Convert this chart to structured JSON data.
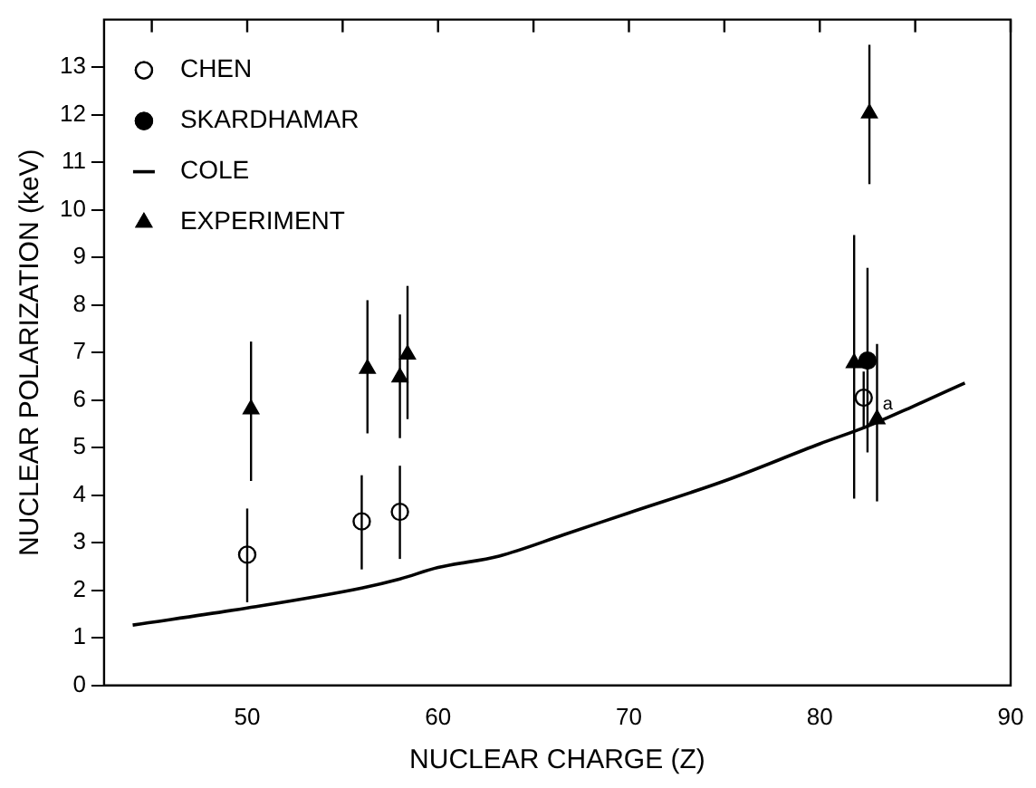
{
  "chart_data": {
    "type": "scatter",
    "xlabel": "NUCLEAR CHARGE (Z)",
    "ylabel": "NUCLEAR POLARIZATION (keV)",
    "xlim": [
      42.5,
      90
    ],
    "ylim": [
      0,
      14
    ],
    "xticks": [
      {
        "value": 45,
        "label": null
      },
      50,
      {
        "value": 55,
        "label": null
      },
      60,
      {
        "value": 65,
        "label": null
      },
      70,
      {
        "value": 75,
        "label": null
      },
      80,
      {
        "value": 85,
        "label": null
      },
      90
    ],
    "yticks": [
      0,
      1,
      2,
      3,
      4,
      5,
      6,
      7,
      8,
      9,
      10,
      11,
      12,
      13
    ],
    "grid": false,
    "legend": "top left",
    "series": [
      {
        "name": "CHEN",
        "type": "scatter",
        "marker": "circle",
        "color": "#ffffff",
        "x": [
          50,
          56,
          58,
          82.3
        ],
        "values": [
          2.75,
          3.45,
          3.65,
          6.05
        ],
        "errors": [
          [
            1.75,
            3.72
          ],
          [
            2.44,
            4.42
          ],
          [
            2.66,
            4.62
          ],
          [
            5.4,
            6.6
          ]
        ]
      },
      {
        "name": "SKARDHAMAR",
        "type": "scatter",
        "marker": "circle",
        "color": "#000000",
        "x": [
          82.5
        ],
        "values": [
          6.83
        ],
        "errors": [
          [
            4.9,
            8.78
          ]
        ]
      },
      {
        "name": "COLE",
        "type": "line",
        "marker": "none",
        "line_style": "solid",
        "color": "#000000",
        "x": [
          44,
          50,
          56,
          58,
          60,
          63.2,
          66.6,
          70,
          75,
          80,
          82.5,
          84.9,
          87.6
        ],
        "values": [
          1.27,
          1.63,
          2.05,
          2.24,
          2.48,
          2.72,
          3.17,
          3.63,
          4.3,
          5.08,
          5.45,
          5.87,
          6.36
        ]
      },
      {
        "name": "EXPERIMENT",
        "type": "scatter",
        "marker": "triangle",
        "color": "#000000",
        "x": [
          50.2,
          56.3,
          58,
          58.4,
          81.8,
          82.6,
          83
        ],
        "values": [
          5.81,
          6.66,
          6.48,
          6.96,
          6.78,
          12.03,
          5.6
        ],
        "errors": [
          [
            4.3,
            7.23
          ],
          [
            5.3,
            8.1
          ],
          [
            5.2,
            7.8
          ],
          [
            5.6,
            8.4
          ],
          [
            3.93,
            9.47
          ],
          [
            10.54,
            13.47
          ],
          [
            3.87,
            7.18
          ]
        ]
      }
    ],
    "annotations": [
      {
        "text": "a",
        "x": 83.3,
        "y": 5.8
      }
    ]
  }
}
